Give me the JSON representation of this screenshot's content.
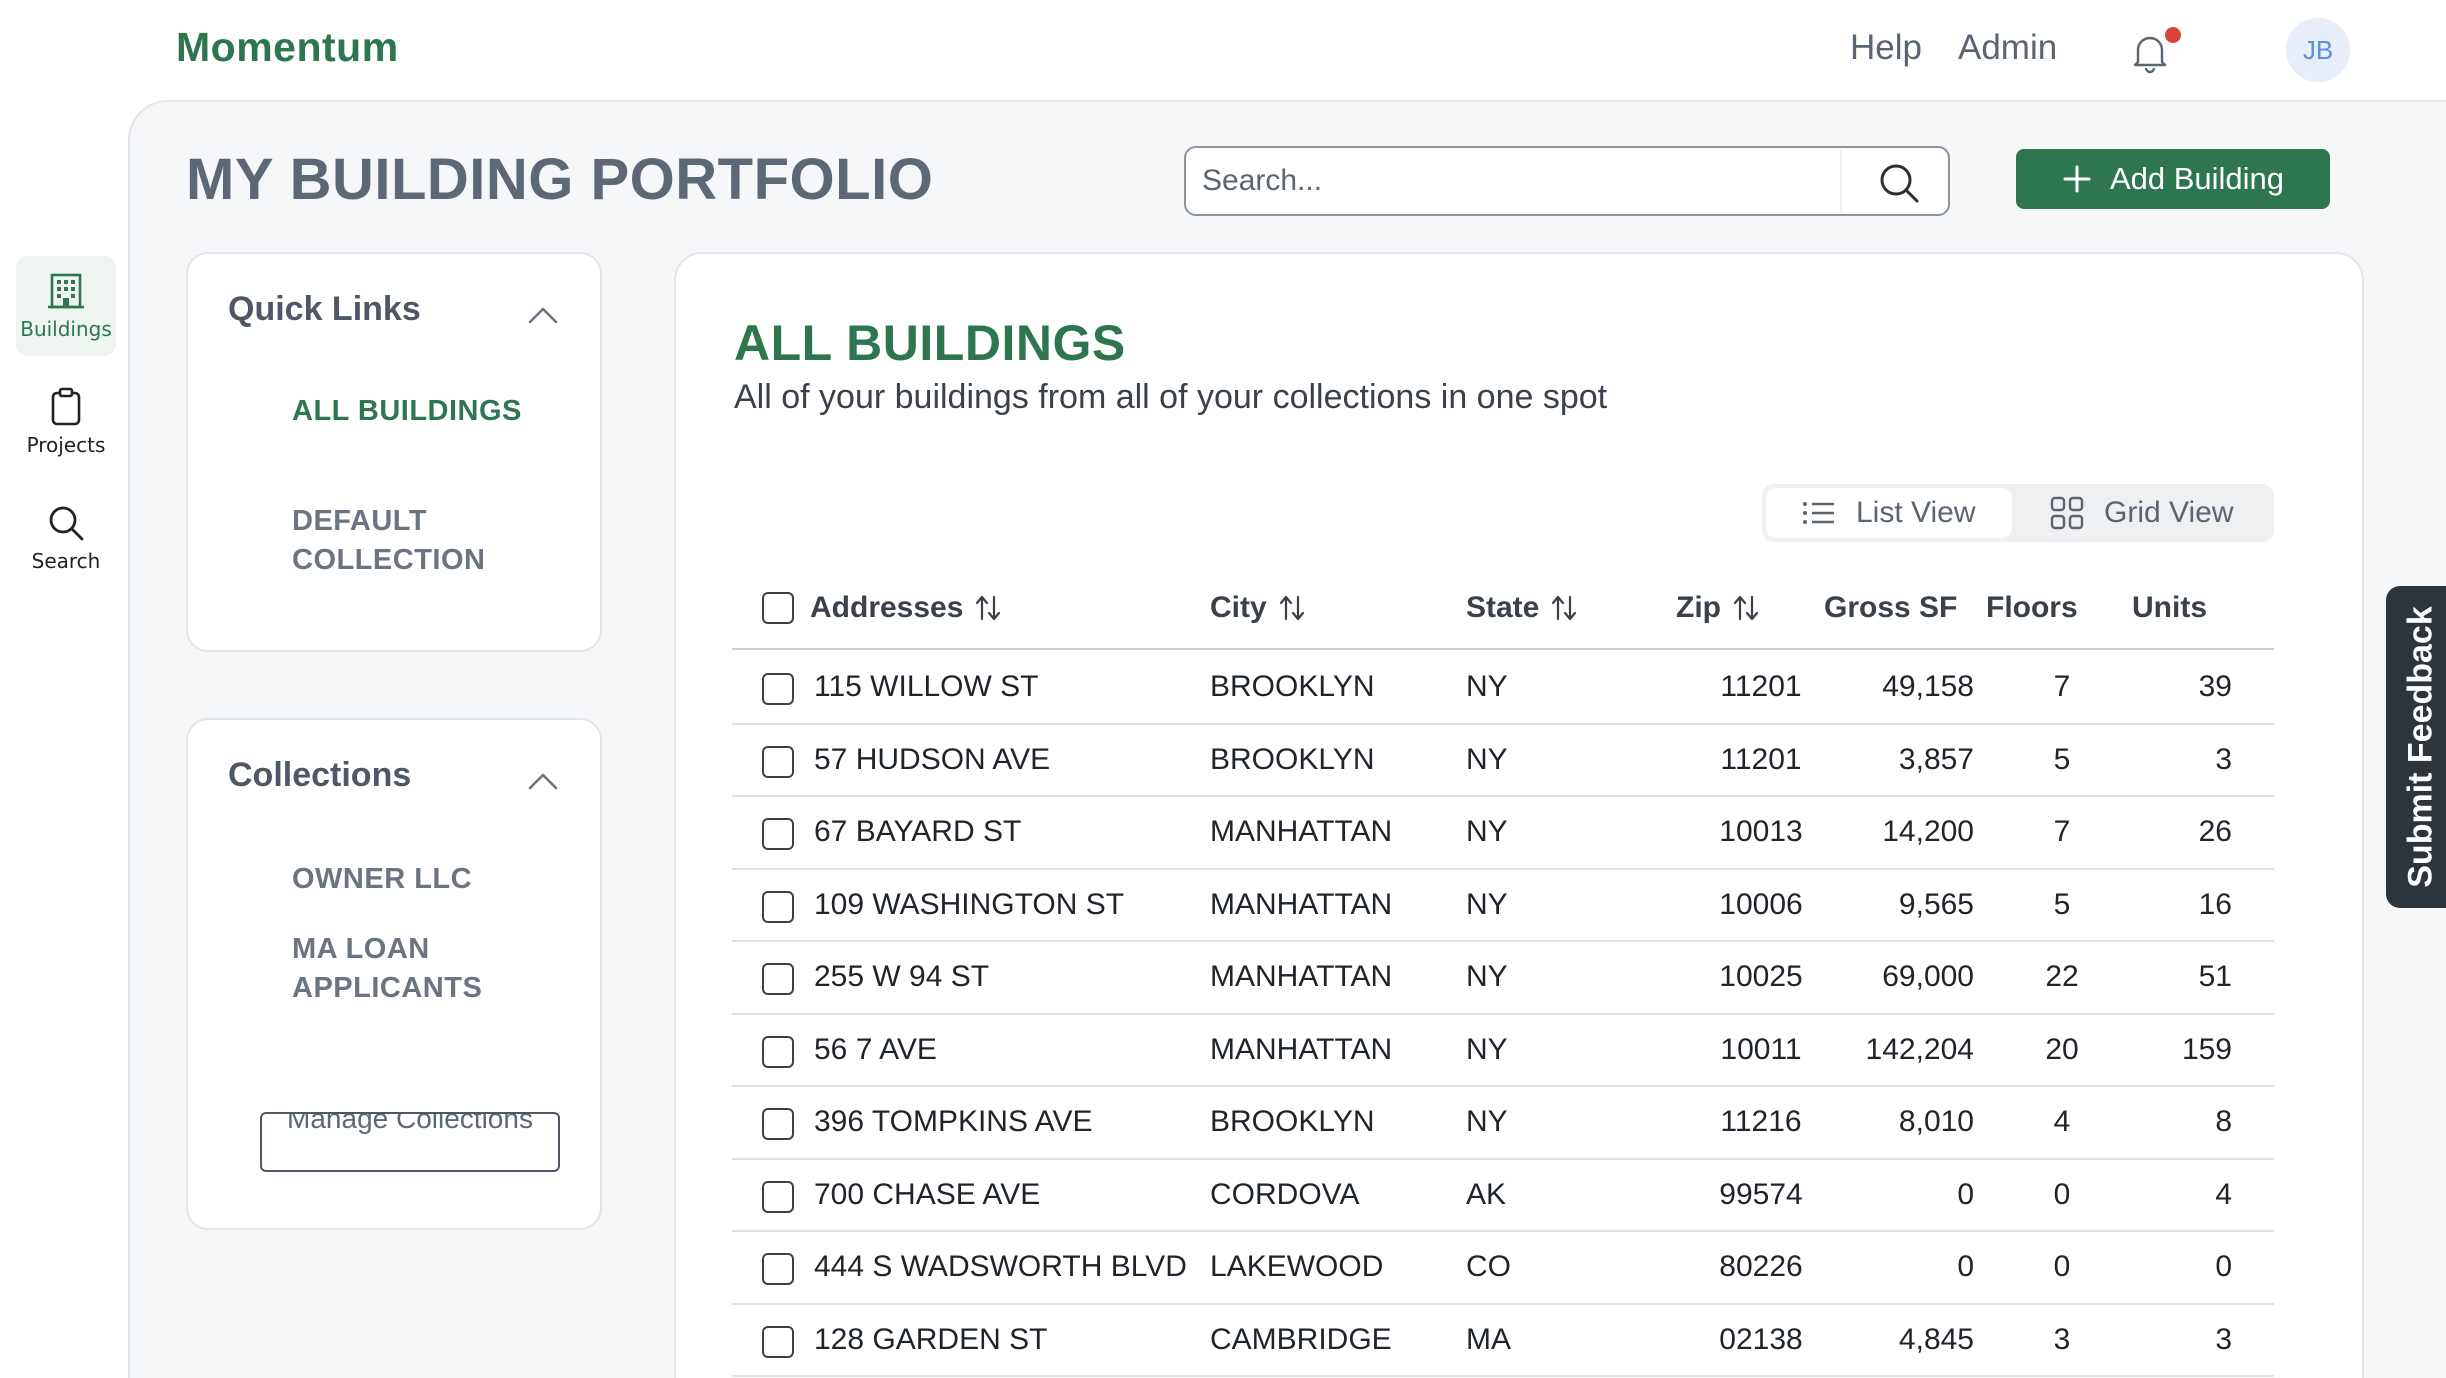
{
  "header": {
    "brand": "Momentum",
    "links": [
      "Help",
      "Admin"
    ],
    "avatar_initials": "JB",
    "notification_dot_color": "#d9433b"
  },
  "rail": {
    "items": [
      {
        "label": "Buildings",
        "icon": "building-icon",
        "active": true
      },
      {
        "label": "Projects",
        "icon": "clipboard-icon",
        "active": false
      },
      {
        "label": "Search",
        "icon": "search-icon",
        "active": false
      }
    ]
  },
  "page": {
    "title": "MY BUILDING PORTFOLIO",
    "search_placeholder": "Search...",
    "add_button_label": "Add Building"
  },
  "quick_links": {
    "title": "Quick Links",
    "items": [
      {
        "label": "ALL BUILDINGS",
        "active": true
      },
      {
        "label": "DEFAULT COLLECTION",
        "active": false
      }
    ]
  },
  "collections": {
    "title": "Collections",
    "items": [
      "OWNER LLC",
      "MA LOAN APPLICANTS"
    ],
    "manage_label": "Manage Collections"
  },
  "buildings": {
    "title": "ALL BUILDINGS",
    "subtitle": "All of your buildings from all of your collections in one spot",
    "views": {
      "list": "List View",
      "grid": "Grid View",
      "selected": "list"
    },
    "columns": [
      "Addresses",
      "City",
      "State",
      "Zip",
      "Gross SF",
      "Floors",
      "Units"
    ],
    "rows": [
      {
        "address": "115 WILLOW ST",
        "city": "BROOKLYN",
        "state": "NY",
        "zip": "11201",
        "gross_sf": "49,158",
        "floors": "7",
        "units": "39"
      },
      {
        "address": "57 HUDSON AVE",
        "city": "BROOKLYN",
        "state": "NY",
        "zip": "11201",
        "gross_sf": "3,857",
        "floors": "5",
        "units": "3"
      },
      {
        "address": "67 BAYARD ST",
        "city": "MANHATTAN",
        "state": "NY",
        "zip": "10013",
        "gross_sf": "14,200",
        "floors": "7",
        "units": "26"
      },
      {
        "address": "109 WASHINGTON ST",
        "city": "MANHATTAN",
        "state": "NY",
        "zip": "10006",
        "gross_sf": "9,565",
        "floors": "5",
        "units": "16"
      },
      {
        "address": "255 W 94 ST",
        "city": "MANHATTAN",
        "state": "NY",
        "zip": "10025",
        "gross_sf": "69,000",
        "floors": "22",
        "units": "51"
      },
      {
        "address": "56 7 AVE",
        "city": "MANHATTAN",
        "state": "NY",
        "zip": "10011",
        "gross_sf": "142,204",
        "floors": "20",
        "units": "159"
      },
      {
        "address": "396 TOMPKINS AVE",
        "city": "BROOKLYN",
        "state": "NY",
        "zip": "11216",
        "gross_sf": "8,010",
        "floors": "4",
        "units": "8"
      },
      {
        "address": "700 CHASE AVE",
        "city": "CORDOVA",
        "state": "AK",
        "zip": "99574",
        "gross_sf": "0",
        "floors": "0",
        "units": "4"
      },
      {
        "address": "444 S WADSWORTH BLVD",
        "city": "LAKEWOOD",
        "state": "CO",
        "zip": "80226",
        "gross_sf": "0",
        "floors": "0",
        "units": "0"
      },
      {
        "address": "128 GARDEN ST",
        "city": "CAMBRIDGE",
        "state": "MA",
        "zip": "02138",
        "gross_sf": "4,845",
        "floors": "3",
        "units": "3"
      }
    ]
  },
  "feedback": {
    "label": "Submit Feedback"
  },
  "colors": {
    "brand_green": "#2e7650",
    "feedback_bg": "#2c343c"
  }
}
